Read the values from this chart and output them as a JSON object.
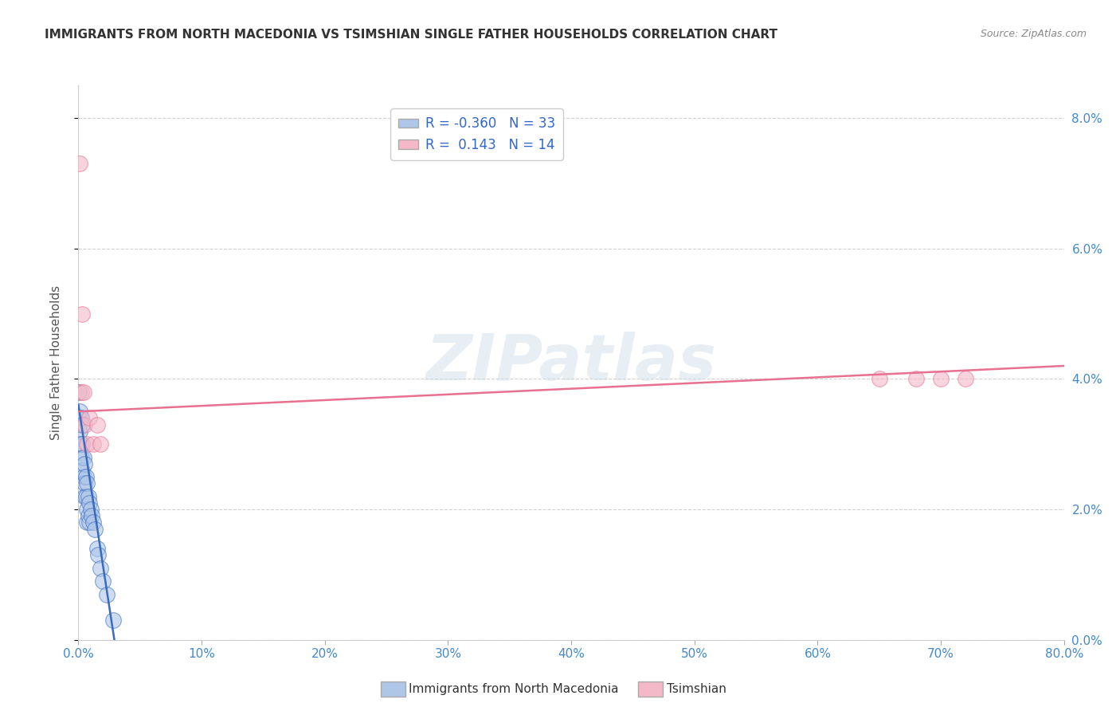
{
  "title": "IMMIGRANTS FROM NORTH MACEDONIA VS TSIMSHIAN SINGLE FATHER HOUSEHOLDS CORRELATION CHART",
  "source": "Source: ZipAtlas.com",
  "ylabel_label": "Single Father Households",
  "legend_label1": "Immigrants from North Macedonia",
  "legend_label2": "Tsimshian",
  "r1": -0.36,
  "n1": 33,
  "r2": 0.143,
  "n2": 14,
  "color1": "#aec6e8",
  "color2": "#f4b8c8",
  "line_color1": "#3a6bbf",
  "line_color2": "#e87090",
  "xmin": 0.0,
  "xmax": 0.8,
  "ymin": 0.0,
  "ymax": 0.085,
  "yticks": [
    0.0,
    0.02,
    0.04,
    0.06,
    0.08
  ],
  "xticks": [
    0.0,
    0.1,
    0.2,
    0.3,
    0.4,
    0.5,
    0.6,
    0.7,
    0.8
  ],
  "blue_dots_x": [
    0.0005,
    0.001,
    0.001,
    0.0015,
    0.002,
    0.002,
    0.003,
    0.003,
    0.003,
    0.004,
    0.004,
    0.005,
    0.005,
    0.005,
    0.006,
    0.006,
    0.007,
    0.007,
    0.007,
    0.008,
    0.008,
    0.009,
    0.009,
    0.01,
    0.011,
    0.012,
    0.013,
    0.015,
    0.016,
    0.018,
    0.02,
    0.023,
    0.028
  ],
  "blue_dots_y": [
    0.038,
    0.035,
    0.032,
    0.03,
    0.034,
    0.028,
    0.033,
    0.03,
    0.026,
    0.028,
    0.025,
    0.027,
    0.024,
    0.022,
    0.025,
    0.022,
    0.024,
    0.02,
    0.018,
    0.022,
    0.019,
    0.021,
    0.018,
    0.02,
    0.019,
    0.018,
    0.017,
    0.014,
    0.013,
    0.011,
    0.009,
    0.007,
    0.003
  ],
  "pink_dots_x": [
    0.001,
    0.002,
    0.003,
    0.004,
    0.005,
    0.007,
    0.009,
    0.012,
    0.015,
    0.018,
    0.65,
    0.68,
    0.7,
    0.72
  ],
  "pink_dots_y": [
    0.073,
    0.038,
    0.05,
    0.038,
    0.033,
    0.03,
    0.034,
    0.03,
    0.033,
    0.03,
    0.04,
    0.04,
    0.04,
    0.04
  ],
  "blue_line_x0": 0.0,
  "blue_line_x1": 0.03,
  "blue_line_y0": 0.036,
  "blue_line_y1": -0.001,
  "pink_line_x0": 0.0,
  "pink_line_x1": 0.8,
  "pink_line_y0": 0.035,
  "pink_line_y1": 0.042,
  "watermark": "ZIPatlas",
  "background_color": "#ffffff",
  "grid_color": "#cccccc"
}
